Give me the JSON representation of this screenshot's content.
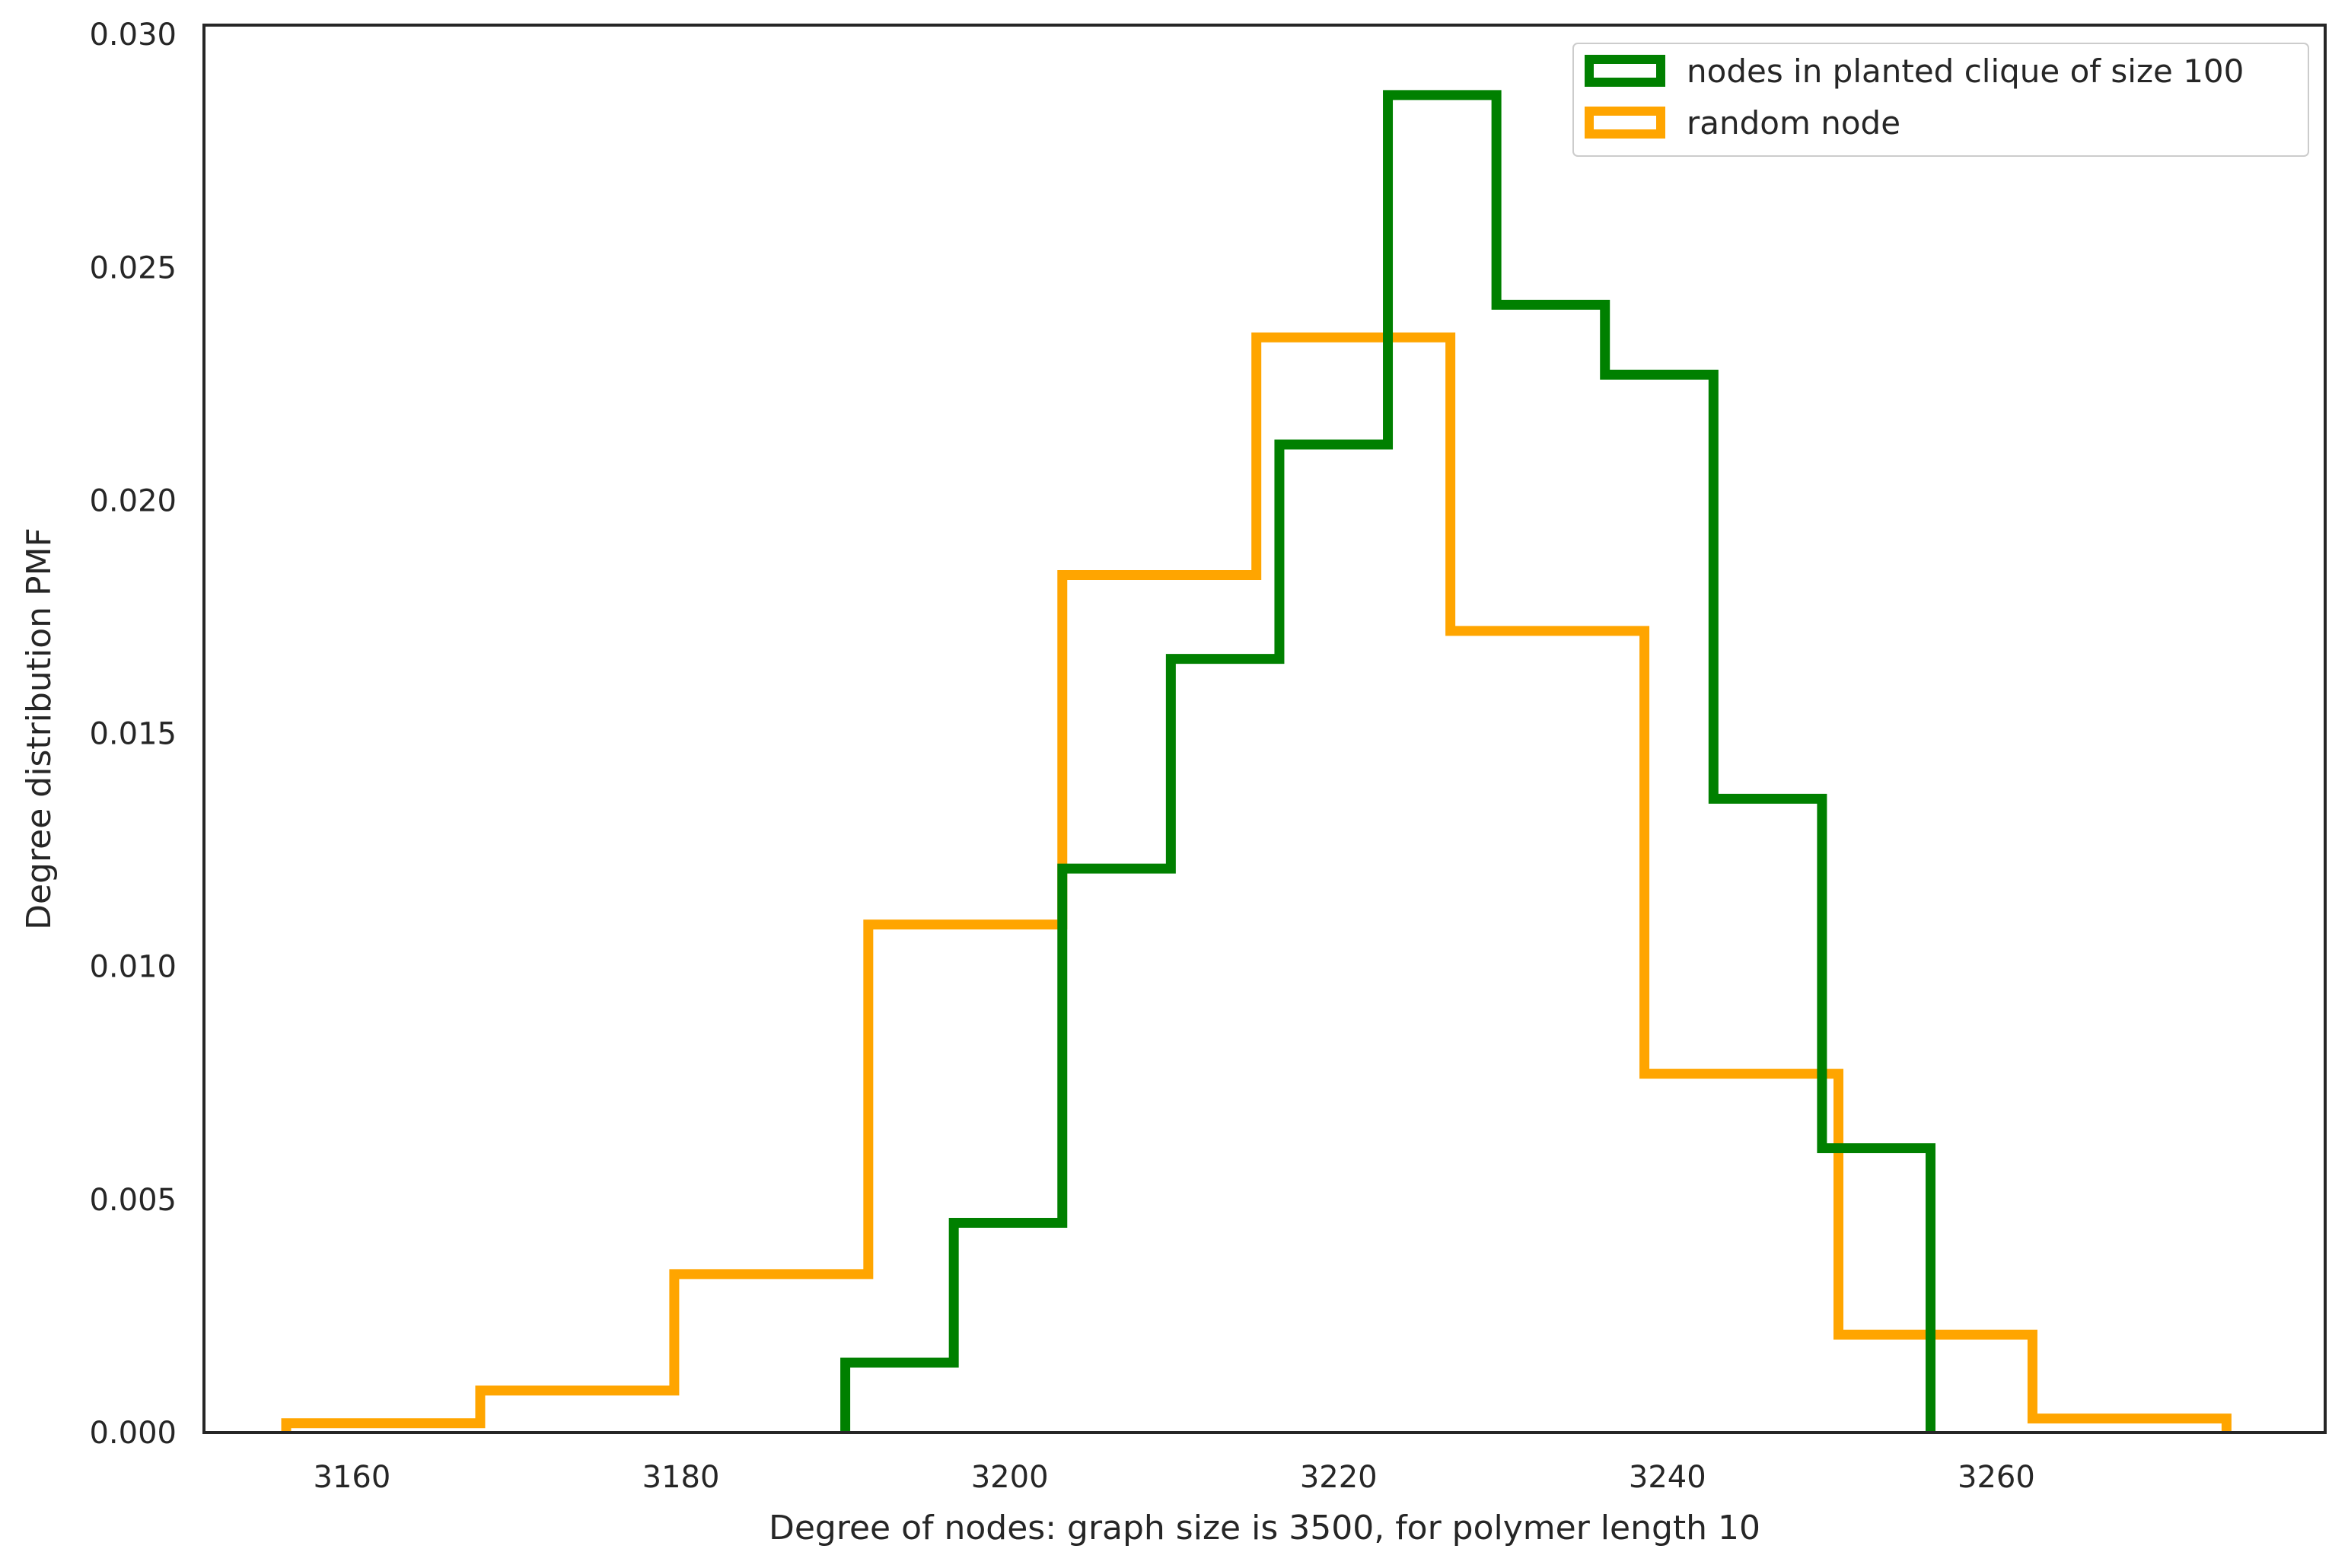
{
  "chart_data": {
    "type": "histogram-step",
    "title": "",
    "xlabel": "Degree of nodes: graph size is 3500, for polymer length 10",
    "ylabel": "Degree distribution PMF",
    "xlim": [
      3151,
      3280
    ],
    "ylim": [
      0,
      0.0302
    ],
    "xticks": [
      3160,
      3180,
      3200,
      3220,
      3240,
      3260
    ],
    "yticks": [
      0.0,
      0.005,
      0.01,
      0.015,
      0.02,
      0.025,
      0.03
    ],
    "ytick_labels": [
      "0.000",
      "0.005",
      "0.010",
      "0.015",
      "0.020",
      "0.025",
      "0.030"
    ],
    "grid": false,
    "legend_position": "top-right",
    "series": [
      {
        "name": "nodes in planted clique of size 100",
        "color": "#008000",
        "bin_edges": [
          3190,
          3196.6,
          3203.2,
          3209.8,
          3216.4,
          3223,
          3229.6,
          3236.2,
          3242.8,
          3249.4,
          3256
        ],
        "values": [
          0.0015,
          0.0045,
          0.0121,
          0.0166,
          0.0212,
          0.0287,
          0.0242,
          0.0227,
          0.0136,
          0.0061
        ]
      },
      {
        "name": "random node",
        "color": "#FFA500",
        "bin_edges": [
          3156,
          3167.8,
          3179.6,
          3191.4,
          3203.2,
          3215,
          3226.8,
          3238.6,
          3250.4,
          3262.2,
          3274
        ],
        "values": [
          0.0002,
          0.0009,
          0.0034,
          0.0109,
          0.0184,
          0.0235,
          0.0172,
          0.0077,
          0.0021,
          0.0003
        ]
      }
    ]
  }
}
